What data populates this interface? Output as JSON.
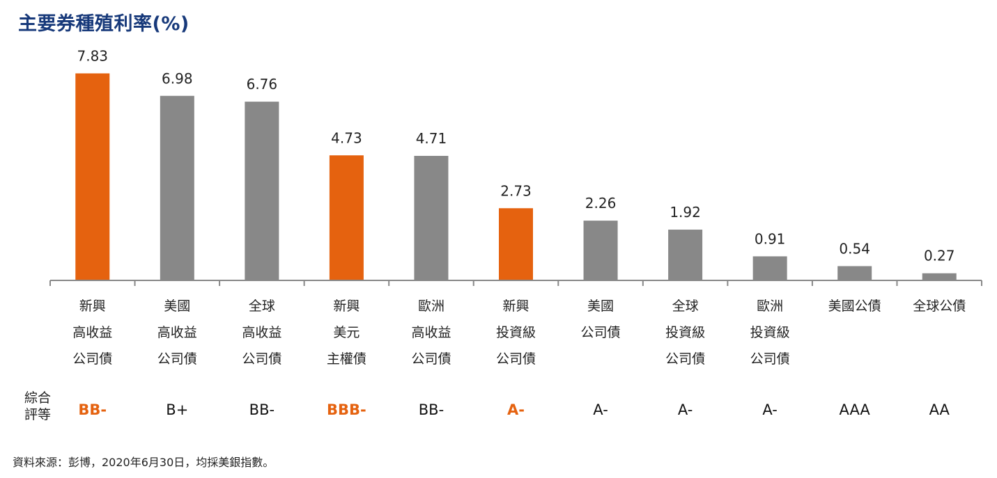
{
  "title": "主要券種殖利率(%)",
  "rating_caption": [
    "綜合",
    "評等"
  ],
  "source_note": "資料來源：彭博，2020年6月30日，均採美銀指數。",
  "colors": {
    "highlight": "#e5620f",
    "neutral": "#888888",
    "axis": "#888888",
    "title": "#17397a"
  },
  "chart_data": {
    "type": "bar",
    "title": "主要券種殖利率(%)",
    "xlabel": "",
    "ylabel": "",
    "ylim": [
      0,
      8.4
    ],
    "grid": false,
    "legend": "none",
    "categories": [
      [
        "新興",
        "高收益",
        "公司債"
      ],
      [
        "美國",
        "高收益",
        "公司債"
      ],
      [
        "全球",
        "高收益",
        "公司債"
      ],
      [
        "新興",
        "美元",
        "主權債"
      ],
      [
        "歐洲",
        "高收益",
        "公司債"
      ],
      [
        "新興",
        "投資級",
        "公司債"
      ],
      [
        "美國",
        "公司債"
      ],
      [
        "全球",
        "投資級",
        "公司債"
      ],
      [
        "歐洲",
        "投資級",
        "公司債"
      ],
      [
        "美國公債"
      ],
      [
        "全球公債"
      ]
    ],
    "values": [
      7.83,
      6.98,
      6.76,
      4.73,
      4.71,
      2.73,
      2.26,
      1.92,
      0.91,
      0.54,
      0.27
    ],
    "value_labels": [
      "7.83",
      "6.98",
      "6.76",
      "4.73",
      "4.71",
      "2.73",
      "2.26",
      "1.92",
      "0.91",
      "0.54",
      "0.27"
    ],
    "highlighted": [
      true,
      false,
      false,
      true,
      false,
      true,
      false,
      false,
      false,
      false,
      false
    ],
    "ratings": [
      "BB-",
      "B+",
      "BB-",
      "BBB-",
      "BB-",
      "A-",
      "A-",
      "A-",
      "A-",
      "AAA",
      "AA"
    ]
  }
}
